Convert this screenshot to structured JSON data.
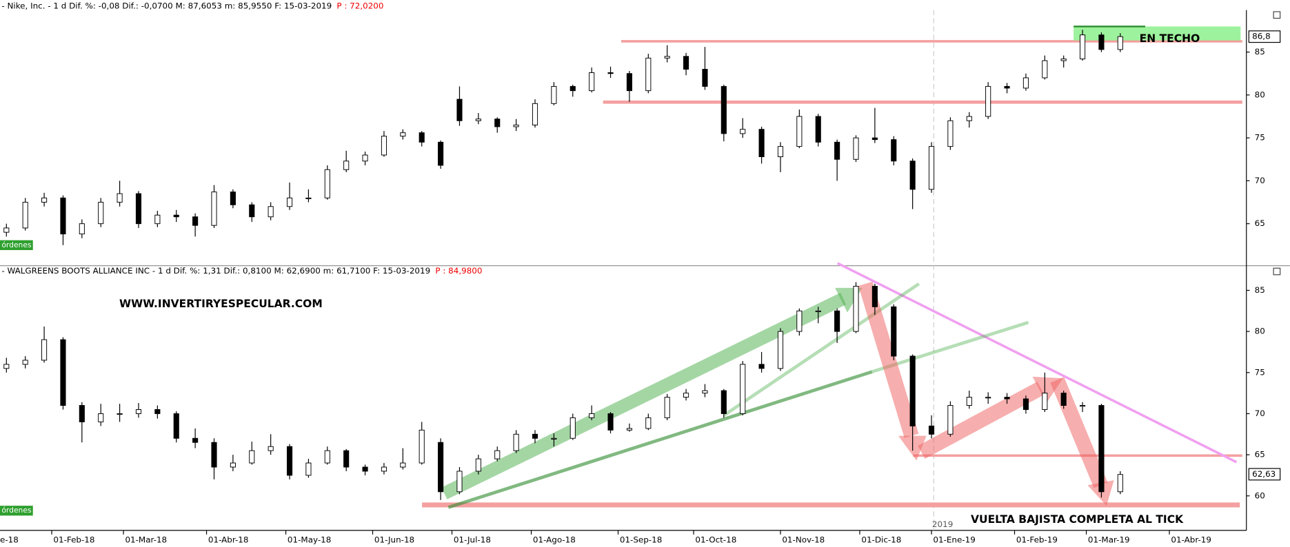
{
  "chart_data": [
    {
      "type": "candlestick",
      "header": "- Nike, Inc. -  1 d Dif. %: -0,08 Dif.: -0,0700 M: 87,6053 m: 85,9550 F: 15-03-2019",
      "header_price": "P : 72,0200",
      "ylim": [
        60.2,
        89.9
      ],
      "yticks": [
        65,
        70,
        75,
        80,
        85
      ],
      "xlim": [
        -13.7,
        316.4
      ],
      "last_price": {
        "value": 86.8,
        "label": "86,8"
      },
      "annotation": "EN TECHO",
      "orders_label": "órdenes",
      "x": [
        -12,
        -7,
        -2,
        3,
        8,
        13,
        18,
        23,
        28,
        33,
        38,
        43,
        48,
        53,
        58,
        63,
        68,
        73,
        78,
        83,
        88,
        93,
        98,
        103,
        108,
        113,
        118,
        123,
        128,
        133,
        138,
        143,
        148,
        153,
        158,
        163,
        168,
        173,
        178,
        183,
        188,
        193,
        198,
        203,
        208,
        213,
        218,
        223,
        228,
        233,
        238,
        243,
        248,
        253,
        258,
        263,
        268,
        273,
        278,
        283
      ],
      "ohlc": [
        [
          64,
          65,
          63.5,
          64.5
        ],
        [
          64.5,
          68,
          64.2,
          67.5
        ],
        [
          67.5,
          68.6,
          67,
          68
        ],
        [
          68,
          68.3,
          62.5,
          63.8
        ],
        [
          63.8,
          65.5,
          63.3,
          65
        ],
        [
          65,
          68,
          64.6,
          67.5
        ],
        [
          67.5,
          70,
          67,
          68.5
        ],
        [
          68.5,
          68.8,
          64.5,
          65
        ],
        [
          65,
          66.5,
          64.6,
          66
        ],
        [
          66,
          66.6,
          65.2,
          65.8
        ],
        [
          65.8,
          66.2,
          63.5,
          64.8
        ],
        [
          64.8,
          69.5,
          64.5,
          68.7
        ],
        [
          68.7,
          69,
          66.8,
          67.2
        ],
        [
          67.2,
          67.5,
          65.2,
          65.8
        ],
        [
          65.8,
          67.5,
          65.4,
          67
        ],
        [
          67,
          69.8,
          66.6,
          68
        ],
        [
          68,
          69,
          67.5,
          68
        ],
        [
          68,
          71.8,
          67.8,
          71.3
        ],
        [
          71.3,
          73.5,
          71,
          72.3
        ],
        [
          72.3,
          73.4,
          71.8,
          73
        ],
        [
          73,
          75.8,
          72.8,
          75.2
        ],
        [
          75.2,
          76,
          74.8,
          75.6
        ],
        [
          75.6,
          75.8,
          74,
          74.5
        ],
        [
          74.5,
          74.7,
          71.4,
          71.8
        ],
        [
          79.5,
          81,
          76.4,
          77
        ],
        [
          77,
          77.9,
          76.6,
          77.2
        ],
        [
          77.2,
          77.4,
          75.6,
          76.3
        ],
        [
          76.3,
          77.2,
          75.8,
          76.5
        ],
        [
          76.5,
          79.5,
          76.2,
          79
        ],
        [
          79,
          81.5,
          78.8,
          81
        ],
        [
          81,
          81.2,
          79.8,
          80.5
        ],
        [
          80.5,
          83.2,
          80.3,
          82.6
        ],
        [
          82.6,
          83.3,
          82,
          82.5
        ],
        [
          82.5,
          82.8,
          79.2,
          80.5
        ],
        [
          80.5,
          84.8,
          80.2,
          84.3
        ],
        [
          84.3,
          85.8,
          83.8,
          84.5
        ],
        [
          84.5,
          84.9,
          82.3,
          83
        ],
        [
          83,
          85.6,
          80.6,
          81
        ],
        [
          81,
          81.2,
          74.6,
          75.5
        ],
        [
          75.5,
          77.3,
          75,
          76
        ],
        [
          76,
          76.3,
          72,
          72.8
        ],
        [
          72.8,
          74.5,
          71,
          74
        ],
        [
          74,
          78.3,
          73.8,
          77.5
        ],
        [
          77.5,
          77.8,
          74,
          74.5
        ],
        [
          74.5,
          74.8,
          70,
          72.5
        ],
        [
          72.5,
          75.3,
          72.2,
          75
        ],
        [
          75,
          78.5,
          74.4,
          74.8
        ],
        [
          74.8,
          75.2,
          71.8,
          72.3
        ],
        [
          72.3,
          72.6,
          66.7,
          69
        ],
        [
          69,
          74.5,
          68.6,
          74
        ],
        [
          74,
          77.4,
          73.6,
          77
        ],
        [
          77,
          78,
          76.2,
          77.5
        ],
        [
          77.5,
          81.5,
          77.2,
          81
        ],
        [
          81,
          81.4,
          80.2,
          80.8
        ],
        [
          80.8,
          82.5,
          80.5,
          82
        ],
        [
          82,
          84.6,
          81.8,
          84
        ],
        [
          84,
          84.6,
          83.2,
          84.2
        ],
        [
          84.2,
          87.6,
          84,
          87
        ],
        [
          87,
          87.3,
          85,
          85.3
        ],
        [
          85.3,
          87.2,
          85,
          86.8
        ]
      ]
    },
    {
      "type": "candlestick",
      "header": "- WALGREENS BOOTS ALLIANCE INC -  1 d Dif. %: 1,31 Dif.: 0,8100 M: 62,6900 m: 61,7100 F: 15-03-2019",
      "header_price": "P : 84,9800",
      "ylim": [
        55.8,
        86.7
      ],
      "yticks": [
        60,
        65,
        70,
        75,
        80,
        85
      ],
      "xlim": [
        -13.7,
        316.4
      ],
      "last_price": {
        "value": 62.63,
        "label": "62,63"
      },
      "orders_label": "órdenes",
      "site": "WWW.INVERTIRYESPECULAR.COM",
      "annotation": "VUELTA BAJISTA COMPLETA AL TICK",
      "year_label": "2019",
      "x_axis_fragment": "e-18",
      "xticks": [
        {
          "value": 0,
          "label": "01-Feb-18"
        },
        {
          "value": 19,
          "label": "01-Mar-18"
        },
        {
          "value": 41,
          "label": "01-Abr-18"
        },
        {
          "value": 62,
          "label": "01-May-18"
        },
        {
          "value": 85,
          "label": "01-Jun-18"
        },
        {
          "value": 106,
          "label": "01-Jul-18"
        },
        {
          "value": 127,
          "label": "01-Ago-18"
        },
        {
          "value": 150,
          "label": "01-Sep-18"
        },
        {
          "value": 170,
          "label": "01-Oct-18"
        },
        {
          "value": 193,
          "label": "01-Nov-18"
        },
        {
          "value": 214,
          "label": "01-Dic-18"
        },
        {
          "value": 233,
          "label": "01-Ene-19"
        },
        {
          "value": 255,
          "label": "01-Feb-19"
        },
        {
          "value": 274,
          "label": "01-Mar-19"
        },
        {
          "value": 296,
          "label": "01-Abr-19"
        }
      ],
      "x": [
        -12,
        -7,
        -2,
        3,
        8,
        13,
        18,
        23,
        28,
        33,
        38,
        43,
        48,
        53,
        58,
        63,
        68,
        73,
        78,
        83,
        88,
        93,
        98,
        103,
        108,
        113,
        118,
        123,
        128,
        133,
        138,
        143,
        148,
        153,
        158,
        163,
        168,
        173,
        178,
        183,
        188,
        193,
        198,
        203,
        208,
        213,
        218,
        223,
        228,
        233,
        238,
        243,
        248,
        253,
        258,
        263,
        268,
        273,
        278,
        283
      ],
      "ohlc": [
        [
          75.5,
          76.8,
          75,
          76
        ],
        [
          76,
          77,
          75.5,
          76.5
        ],
        [
          76.5,
          80.6,
          76.2,
          79
        ],
        [
          79,
          79.3,
          70.5,
          71
        ],
        [
          71,
          71.4,
          66.5,
          69
        ],
        [
          69,
          71.2,
          68.5,
          70
        ],
        [
          70,
          71.2,
          69,
          70
        ],
        [
          70,
          71.3,
          69.5,
          70.5
        ],
        [
          70.5,
          71,
          69.4,
          70
        ],
        [
          70,
          70.3,
          66.5,
          67
        ],
        [
          67,
          68.2,
          65.8,
          66.5
        ],
        [
          66.5,
          67,
          62,
          63.5
        ],
        [
          63.5,
          65,
          63,
          64
        ],
        [
          64,
          66.6,
          63.8,
          65.5
        ],
        [
          65.5,
          67.5,
          65,
          66
        ],
        [
          66,
          66.3,
          62,
          62.5
        ],
        [
          62.5,
          64.5,
          62.2,
          64
        ],
        [
          64,
          66,
          63.8,
          65.5
        ],
        [
          65.5,
          65.7,
          63,
          63.5
        ],
        [
          63.5,
          63.8,
          62.5,
          63
        ],
        [
          63,
          64,
          62.6,
          63.5
        ],
        [
          63.5,
          65.8,
          63.2,
          64
        ],
        [
          64,
          69,
          63.8,
          68
        ],
        [
          66.5,
          67,
          59.5,
          60.5
        ],
        [
          60.5,
          63.5,
          60.2,
          63
        ],
        [
          63,
          65,
          62.6,
          64.5
        ],
        [
          64.5,
          66,
          64.2,
          65.5
        ],
        [
          65.5,
          68,
          65.2,
          67.5
        ],
        [
          67.5,
          68,
          66.4,
          67
        ],
        [
          67,
          67.6,
          66,
          67
        ],
        [
          67,
          70,
          66.8,
          69.5
        ],
        [
          69.5,
          71,
          69.2,
          70
        ],
        [
          70,
          70.2,
          67.6,
          68
        ],
        [
          68,
          68.8,
          67.8,
          68.2
        ],
        [
          68.2,
          70,
          68,
          69.5
        ],
        [
          69.5,
          72.4,
          69.2,
          72
        ],
        [
          72,
          73,
          71.6,
          72.5
        ],
        [
          72.5,
          73.6,
          72,
          72.8
        ],
        [
          72.8,
          73,
          69.5,
          70
        ],
        [
          70,
          76.4,
          69.8,
          76
        ],
        [
          76,
          77.5,
          75,
          75.5
        ],
        [
          75.5,
          80.4,
          75.2,
          80
        ],
        [
          80,
          82.8,
          79.5,
          82.5
        ],
        [
          82.5,
          83,
          81,
          82.5
        ],
        [
          82.5,
          82.8,
          78.6,
          80
        ],
        [
          80,
          86,
          79.8,
          85.5
        ],
        [
          85.5,
          85.8,
          82,
          83
        ],
        [
          83,
          83.3,
          76.5,
          77
        ],
        [
          77,
          77.2,
          65.5,
          68.5
        ],
        [
          68.5,
          69.8,
          67,
          67.5
        ],
        [
          67.5,
          71.5,
          67.2,
          71
        ],
        [
          71,
          72.8,
          70.6,
          72
        ],
        [
          72,
          72.6,
          71.2,
          72
        ],
        [
          72,
          72.5,
          71.2,
          71.8
        ],
        [
          71.8,
          72.2,
          70,
          70.5
        ],
        [
          70.5,
          75,
          70.2,
          72.5
        ],
        [
          72.5,
          72.8,
          70.6,
          71
        ],
        [
          71,
          71.4,
          70.2,
          71
        ],
        [
          71,
          71.2,
          59.8,
          60.5
        ],
        [
          60.5,
          63,
          60.2,
          62.6
        ]
      ]
    }
  ]
}
